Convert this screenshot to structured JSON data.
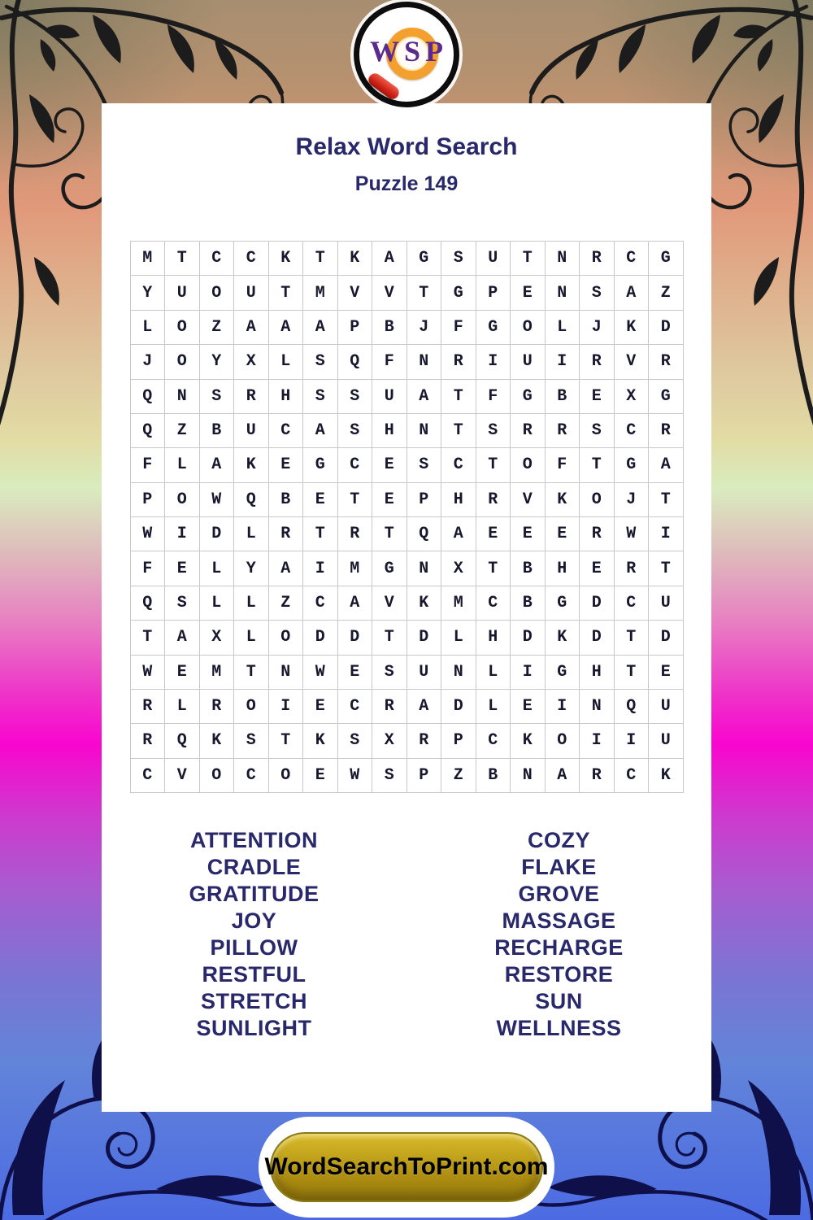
{
  "logo": {
    "letters": [
      "W",
      "S",
      "P"
    ]
  },
  "puzzle": {
    "title": "Relax Word Search",
    "subtitle": "Puzzle 149",
    "grid_rows": [
      "MTCCKTKAGSUTNRCG",
      "YUOUTMVVTGPENSAZ",
      "LOZAAAPBJFGOLJKD",
      "JOYXLSQFNRIUIRVR",
      "QNSRHSSUATFGBEXG",
      "QZBUCASHNTSRRSCR",
      "FLAKEGCESCTOFTGA",
      "POWQBETEPHRVKOJT",
      "WIDLRTRTQAEEERWI",
      "FELYAIMGNXTBHERT",
      "QSLLZCAVKMCBGDCU",
      "TAXLODDTDLHDKDTD",
      "WEMTNWESUNLIGHTE",
      "RLROIECRADLEINQU",
      "RQKSTKSXRPCKOIIU",
      "CVOCOEWSPZBNARCK"
    ]
  },
  "words": {
    "left": [
      "ATTENTION",
      "CRADLE",
      "GRATITUDE",
      "JOY",
      "PILLOW",
      "RESTFUL",
      "STRETCH",
      "SUNLIGHT"
    ],
    "right": [
      "COZY",
      "FLAKE",
      "GROVE",
      "MASSAGE",
      "RECHARGE",
      "RESTORE",
      "SUN",
      "WELLNESS"
    ]
  },
  "footer": {
    "button_label": "WordSearchToPrint.com"
  },
  "colors": {
    "navy": "#28286b",
    "letter": "#17172e",
    "grid_line": "#c8c8c8",
    "card": "#ffffff",
    "gold": "#a8890f",
    "logo_purple": "#5b2a8e",
    "ring_orange": "#f3a02f",
    "handle_red": "#cf2316"
  }
}
